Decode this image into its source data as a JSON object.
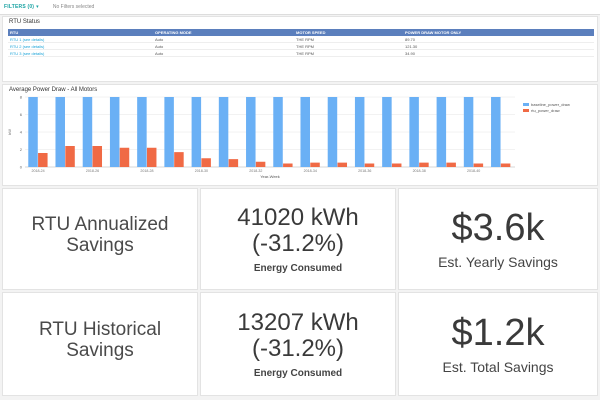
{
  "topbar": {
    "filters_label": "FILTERS (0)",
    "status": "No Filters selected"
  },
  "rtu_status": {
    "title": "RTU Status",
    "columns": [
      "RTU",
      "OPERATING MODE",
      "MOTOR SPEED",
      "POWER DRAW MOTOR ONLY"
    ],
    "rows": [
      [
        "RTU 1 (see details)",
        "Auto",
        "THE RPM",
        "89.70"
      ],
      [
        "RTU 2 (see details)",
        "Auto",
        "THE RPM",
        "121.30"
      ],
      [
        "RTU 3 (see details)",
        "Auto",
        "THE RPM",
        "34.90"
      ]
    ]
  },
  "chart_data": {
    "type": "bar",
    "title": "Average Power Draw - All Motors",
    "xlabel": "Year-Week",
    "ylabel": "kW",
    "ylim": [
      0,
      8
    ],
    "yticks": [
      "0",
      "2",
      "4",
      "6",
      "8"
    ],
    "categories": [
      "2018-24",
      "2018-25",
      "2018-26",
      "2018-27",
      "2018-28",
      "2018-29",
      "2018-30",
      "2018-31",
      "2018-32",
      "2018-33",
      "2018-34",
      "2018-35",
      "2018-36",
      "2018-37",
      "2018-38",
      "2018-39",
      "2018-40",
      "2018-41"
    ],
    "xtick_labels": [
      "2018-24",
      "2018-26",
      "2018-28",
      "2018-30",
      "2018-32",
      "2018-34",
      "2018-36",
      "2018-38",
      "2018-40"
    ],
    "series": [
      {
        "name": "baseline_power_draw",
        "color": "#6ab0f5",
        "values": [
          8.2,
          8.2,
          8.2,
          8.2,
          8.2,
          8.2,
          8.2,
          8.2,
          8.2,
          8.2,
          8.2,
          8.2,
          8.2,
          8.2,
          8.2,
          8.2,
          8.2,
          8.2
        ]
      },
      {
        "name": "rtu_power_draw",
        "color": "#f06a45",
        "values": [
          1.6,
          2.4,
          2.4,
          2.2,
          2.2,
          1.7,
          1.0,
          0.9,
          0.6,
          0.4,
          0.5,
          0.5,
          0.4,
          0.4,
          0.5,
          0.5,
          0.4,
          0.4
        ]
      }
    ],
    "grid": true,
    "legend": "right"
  },
  "kpis": {
    "annualized_label": "RTU Annualized Savings",
    "annualized_energy": "41020 kWh",
    "annualized_pct": "(-31.2%)",
    "annualized_energy_label": "Energy Consumed",
    "annualized_savings": "$3.6k",
    "annualized_savings_label": "Est. Yearly Savings",
    "historical_label": "RTU Historical Savings",
    "historical_energy": "13207 kWh",
    "historical_pct": "(-31.2%)",
    "historical_energy_label": "Energy Consumed",
    "historical_savings": "$1.2k",
    "historical_savings_label": "Est. Total Savings"
  }
}
